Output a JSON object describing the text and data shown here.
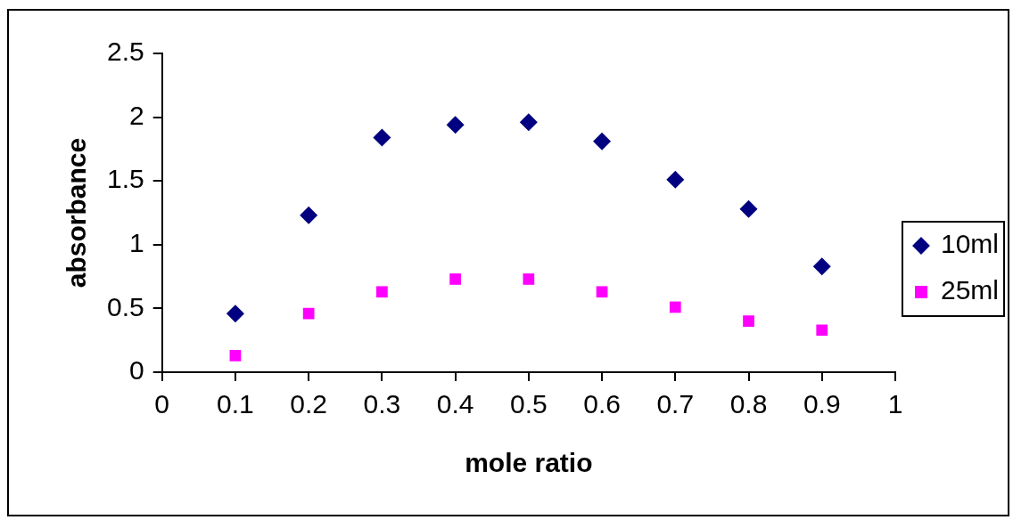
{
  "chart_data": {
    "type": "scatter",
    "xlabel": "mole ratio",
    "ylabel": "absorbance",
    "xlim": [
      0,
      1
    ],
    "xticks": [
      0,
      0.1,
      0.2,
      0.3,
      0.4,
      0.5,
      0.6,
      0.7,
      0.8,
      0.9,
      1
    ],
    "ylim": [
      0,
      2.5
    ],
    "yticks": [
      0,
      0.5,
      1,
      1.5,
      2,
      2.5
    ],
    "grid": false,
    "legend": "right",
    "series": [
      {
        "name": "10ml",
        "color": "#000080",
        "marker": "diamond",
        "x": [
          0.1,
          0.2,
          0.3,
          0.4,
          0.5,
          0.6,
          0.7,
          0.8,
          0.9
        ],
        "values": [
          0.46,
          1.23,
          1.84,
          1.94,
          1.96,
          1.81,
          1.51,
          1.28,
          0.83
        ]
      },
      {
        "name": "25ml",
        "color": "#ff00ff",
        "marker": "square",
        "x": [
          0.1,
          0.2,
          0.3,
          0.4,
          0.5,
          0.6,
          0.7,
          0.8,
          0.9
        ],
        "values": [
          0.13,
          0.46,
          0.63,
          0.73,
          0.73,
          0.63,
          0.51,
          0.4,
          0.33
        ]
      }
    ]
  }
}
